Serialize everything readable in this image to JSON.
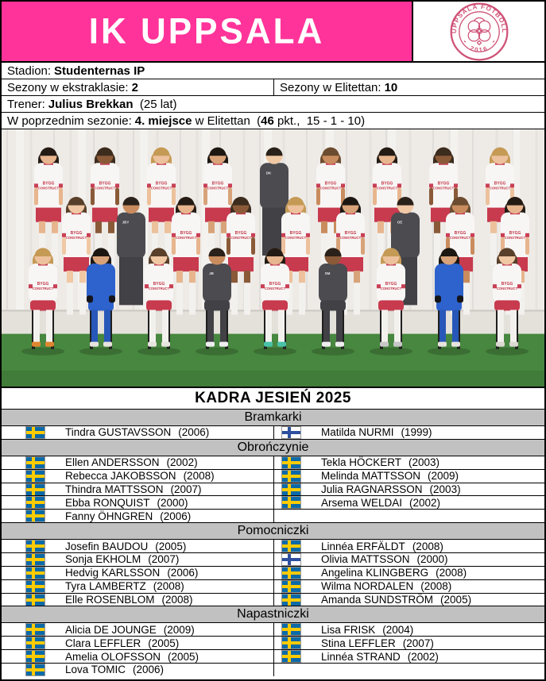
{
  "header": {
    "title": "IK UPPSALA",
    "banner_color": "#ff3399",
    "logo": {
      "top_text": "UPPSALA FOTBOLL",
      "bottom_text": "2016",
      "color": "#cf5277"
    }
  },
  "info": {
    "stadium_label": "Stadion:",
    "stadium_value": "Studenternas IP",
    "ekstraklasa_label": "Sezony w ekstraklasie:",
    "ekstraklasa_value": "2",
    "elitettan_label": "Sezony w Elitettan:",
    "elitettan_value": "10",
    "coach_label": "Trener:",
    "coach_name": "Julius Brekkan",
    "coach_age": "  (25 lat)",
    "prev_label": "W poprzednim sezonie:",
    "prev_place": "4. miejsce",
    "prev_league": " w Elitettan  (",
    "prev_points": "46",
    "prev_tail": " pkt.,  15 - 1 - 10)"
  },
  "photo": {
    "backdrop_color": "#eeebe7",
    "turf_color": "#47873f",
    "platform_color": "#e4e1db",
    "kit_white": "#f8f6f5",
    "kit_trim": "#c84055",
    "kit_shorts": "#c83a4e",
    "kit_gk": "#2e62cc",
    "kit_staff": "#4b4b50",
    "staff_pants": "#414146",
    "sponsor_line1": "BYGG",
    "sponsor_line2": "CONSTRUCT",
    "rows": {
      "back": [
        "w",
        "w",
        "w",
        "w",
        "s:DK",
        "w",
        "w",
        "w",
        "w"
      ],
      "middle": [
        "w",
        "s:JBY",
        "w",
        "w",
        "w",
        "w",
        "s:OE",
        "w",
        "w"
      ],
      "front": [
        "w",
        "g",
        "w",
        "s:JB",
        "w",
        "s:SM",
        "w",
        "g",
        "w"
      ]
    }
  },
  "squad": {
    "title": "KADRA JESIEŃ 2025",
    "sections": [
      {
        "name": "Bramkarki",
        "rows": [
          [
            {
              "flag": "se",
              "name": "Tindra GUSTAVSSON",
              "year": "(2006)"
            },
            {
              "flag": "fi",
              "name": "Matilda NURMI",
              "year": "(1999)"
            }
          ]
        ]
      },
      {
        "name": "Obrończynie",
        "rows": [
          [
            {
              "flag": "se",
              "name": "Ellen ANDERSSON",
              "year": "(2002)"
            },
            {
              "flag": "se",
              "name": "Tekla HÖCKERT",
              "year": "(2003)"
            }
          ],
          [
            {
              "flag": "se",
              "name": "Rebecca JAKOBSSON",
              "year": "(2008)"
            },
            {
              "flag": "se",
              "name": "Melinda MATTSSON",
              "year": "(2009)"
            }
          ],
          [
            {
              "flag": "se",
              "name": "Thindra MATTSSON",
              "year": "(2007)"
            },
            {
              "flag": "se",
              "name": "Julia RAGNARSSON",
              "year": "(2003)"
            }
          ],
          [
            {
              "flag": "se",
              "name": "Ebba RONQUIST",
              "year": "(2000)"
            },
            {
              "flag": "se",
              "name": "Arsema WELDAI",
              "year": "(2002)"
            }
          ],
          [
            {
              "flag": "se",
              "name": "Fanny ÖHNGREN",
              "year": "(2006)"
            },
            null
          ]
        ]
      },
      {
        "name": "Pomocniczki",
        "rows": [
          [
            {
              "flag": "se",
              "name": "Josefin BAUDOU",
              "year": "(2005)"
            },
            {
              "flag": "se",
              "name": "Linnéa ERFÄLDT",
              "year": "(2008)"
            }
          ],
          [
            {
              "flag": "se",
              "name": "Sonja EKHOLM",
              "year": "(2007)"
            },
            {
              "flag": "fi",
              "name": "Olivia MATTSSON",
              "year": "(2000)"
            }
          ],
          [
            {
              "flag": "se",
              "name": "Hedvig KARLSSON",
              "year": "(2006)"
            },
            {
              "flag": "se",
              "name": "Angelina KLINGBERG",
              "year": "(2008)"
            }
          ],
          [
            {
              "flag": "se",
              "name": "Tyra LAMBERTZ",
              "year": "(2008)"
            },
            {
              "flag": "se",
              "name": "Wilma NORDALEN",
              "year": "(2008)"
            }
          ],
          [
            {
              "flag": "se",
              "name": "Elle ROSENBLOM",
              "year": "(2008)"
            },
            {
              "flag": "se",
              "name": "Amanda SUNDSTRÖM",
              "year": "(2005)"
            }
          ]
        ]
      },
      {
        "name": "Napastniczki",
        "rows": [
          [
            {
              "flag": "se",
              "name": "Alicia DE JOUNGE",
              "year": "(2009)"
            },
            {
              "flag": "se",
              "name": "Lisa FRISK",
              "year": "(2004)"
            }
          ],
          [
            {
              "flag": "se",
              "name": "Clara LEFFLER",
              "year": "(2005)"
            },
            {
              "flag": "se",
              "name": "Stina LEFFLER",
              "year": "(2007)"
            }
          ],
          [
            {
              "flag": "se",
              "name": "Amelia OLOFSSON",
              "year": "(2005)"
            },
            {
              "flag": "se",
              "name": "Linnéa STRAND",
              "year": "(2002)"
            }
          ],
          [
            {
              "flag": "se",
              "name": "Lova TOMIC",
              "year": "(2006)"
            },
            null
          ]
        ]
      }
    ]
  }
}
